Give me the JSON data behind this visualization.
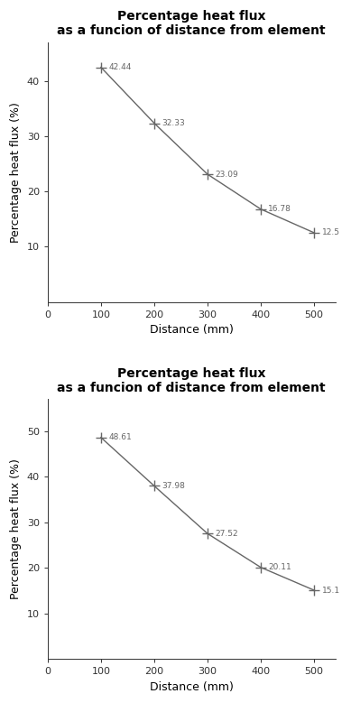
{
  "title": "Percentage heat flux\nas a funcion of distance from element",
  "xlabel": "Distance (mm)",
  "ylabel": "Percentage heat flux (%)",
  "plot1": {
    "x": [
      100,
      200,
      300,
      400,
      500
    ],
    "y": [
      42.44,
      32.33,
      23.09,
      16.78,
      12.51
    ],
    "labels": [
      "42.44",
      "32.33",
      "23.09",
      "16.78",
      "12.5"
    ],
    "xlim": [
      0,
      540
    ],
    "ylim": [
      0,
      47
    ],
    "yticks": [
      10,
      20,
      30,
      40
    ]
  },
  "plot2": {
    "x": [
      100,
      200,
      300,
      400,
      500
    ],
    "y": [
      48.61,
      37.98,
      27.52,
      20.11,
      15.1
    ],
    "labels": [
      "48.61",
      "37.98",
      "27.52",
      "20.11",
      "15.1"
    ],
    "xlim": [
      0,
      540
    ],
    "ylim": [
      0,
      57
    ],
    "yticks": [
      10,
      20,
      30,
      40,
      50
    ]
  },
  "xticks": [
    0,
    100,
    200,
    300,
    400,
    500
  ],
  "marker": "+",
  "marker_size": 8,
  "marker_color": "#666666",
  "line_color": "#666666",
  "label_fontsize": 6.5,
  "axis_label_fontsize": 9,
  "title_fontsize": 10,
  "tick_fontsize": 8,
  "bg_color": "#ffffff"
}
